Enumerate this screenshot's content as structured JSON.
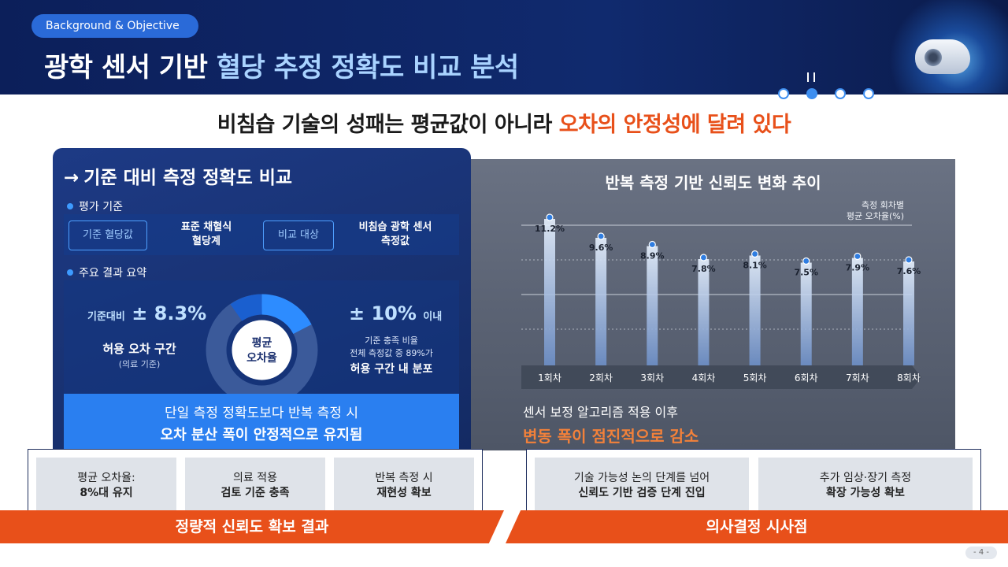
{
  "header": {
    "badge": "Background & Objective",
    "title_main": "광학 센서 기반 ",
    "title_highlight": "혈당 추정 정확도 비교 분석"
  },
  "subtitle": {
    "prefix": "비침습 기술의 성패는 평균값이 아니라 ",
    "emphasis": "오차의 안정성에 달려 있다"
  },
  "left_panel": {
    "title": "기준 대비 측정 정확도 비교",
    "criteria_label": "평가 기준",
    "criteria": [
      {
        "box": "기준 혈당값",
        "text_l1": "표준 채혈식",
        "text_l2": "혈당계"
      },
      {
        "box": "비교 대상",
        "text_l1": "비침습 광학 센서",
        "text_l2": "측정값"
      }
    ],
    "results_label": "주요 결과 요약",
    "left_stat": {
      "prefix": "기준대비",
      "value": "± 8.3%",
      "label": "허용 오차 구간",
      "note": "(의료 기준)"
    },
    "donut_label_l1": "평균",
    "donut_label_l2": "오차율",
    "right_stat": {
      "value": "± 10%",
      "suffix": "이내",
      "l1": "기준 충족 비율",
      "l2": "전체 측정값 중 89%가",
      "l3": "허용 구간 내 분포"
    },
    "callout_l1": "단일 측정 정확도보다 반복 측정 시",
    "callout_l2": "오차 분산 폭이 안정적으로 유지됨"
  },
  "right_panel": {
    "title": "반복 측정 기반 신뢰도 변화 추이",
    "legend_l1": "측정 회차별",
    "legend_l2": "평균 오차율(%)",
    "foot_l1": "센서 보정 알고리즘 적용 이후",
    "foot_l2": "변동 폭이 점진적으로 감소"
  },
  "chart_data": {
    "type": "bar",
    "title": "반복 측정 기반 신뢰도 변화 추이",
    "ylabel": "측정 회차별 평균 오차율(%)",
    "categories": [
      "1회차",
      "2회차",
      "3회차",
      "4회차",
      "5회차",
      "6회차",
      "7회차",
      "8회차"
    ],
    "values": [
      11.2,
      9.6,
      8.9,
      7.8,
      8.1,
      7.5,
      7.9,
      7.6
    ],
    "value_labels": [
      "11.2%",
      "9.6%",
      "8.9%",
      "7.8%",
      "8.1%",
      "7.5%",
      "7.9%",
      "7.6%"
    ],
    "ylim": [
      0,
      12
    ],
    "grid": true,
    "colors": {
      "bar_top": "#e8f2ff",
      "bar_bottom": "#6d8fc7",
      "marker": "#2f7de1"
    }
  },
  "bottom_left": {
    "cards": [
      {
        "l1": "평균 오차율:",
        "l2": "8%대 유지"
      },
      {
        "l1": "의료 적용",
        "l2": "검토 기준 충족"
      },
      {
        "l1": "반복 측정 시",
        "l2": "재현성 확보"
      }
    ],
    "bar_label": "정량적 신뢰도 확보 결과"
  },
  "bottom_right": {
    "cards": [
      {
        "l1": "기술 가능성 논의 단계를 넘어",
        "l2": "신뢰도 기반 검증 단계 진입"
      },
      {
        "l1": "추가 임상·장기 측정",
        "l2": "확장 가능성 확보"
      }
    ],
    "bar_label": "의사결정 시사점"
  },
  "page_number": "- 4 -",
  "colors": {
    "navy": "#102a6e",
    "accent_blue": "#2a7ff0",
    "accent_orange": "#e8501a"
  }
}
